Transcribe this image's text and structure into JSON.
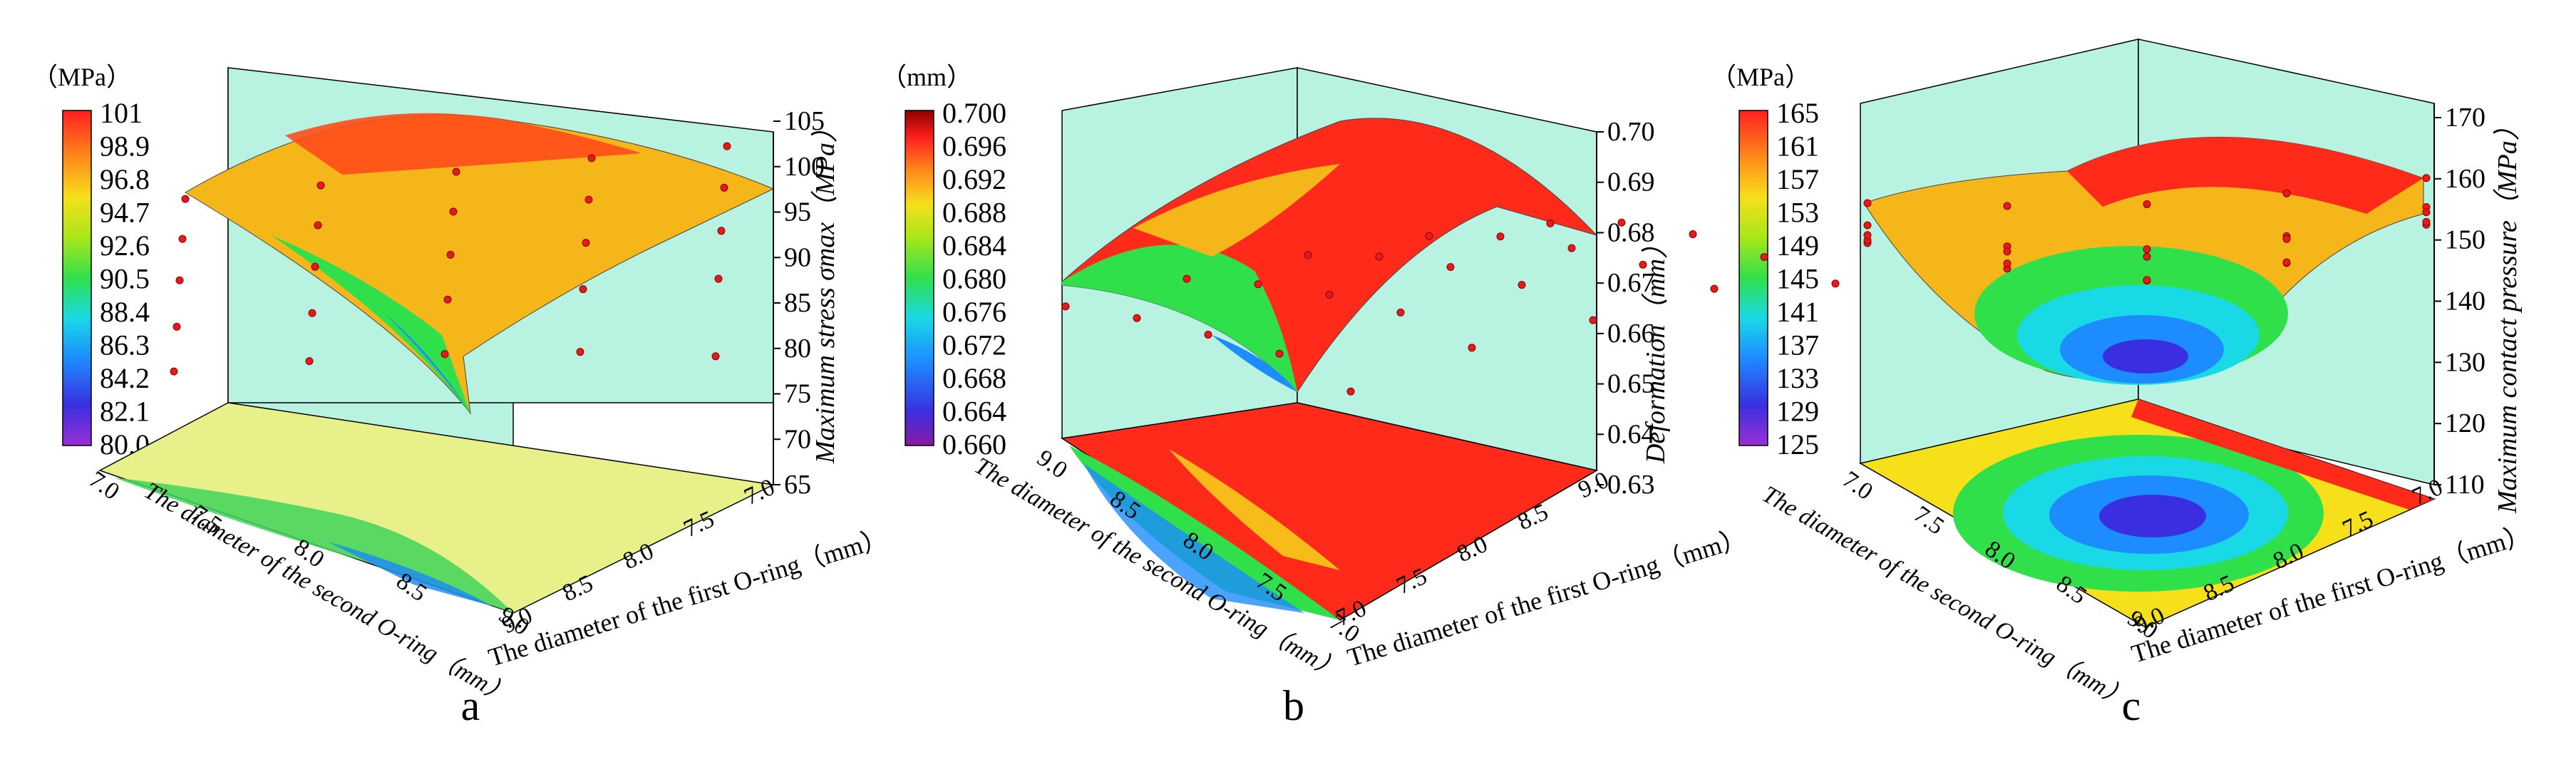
{
  "panels": [
    {
      "letter": "a",
      "colorbar_title": "（MPa）",
      "colorbar_ticks": [
        "101",
        "98.9",
        "96.8",
        "94.7",
        "92.6",
        "90.5",
        "88.4",
        "86.3",
        "84.2",
        "82.1",
        "80.0"
      ],
      "z_axis_label": "Maximum stress σmax（MPa）",
      "z_ticks": [
        "105",
        "100",
        "95",
        "90",
        "85",
        "80",
        "75",
        "70",
        "65"
      ],
      "left_axis_label": "The diameter of the second O-ring（mm）",
      "left_ticks": [
        "7.0",
        "7.5",
        "8.0",
        "8.5",
        "9.0"
      ],
      "right_axis_label": "The diameter of the first O-ring（mm）",
      "right_ticks": [
        "9.0",
        "8.5",
        "8.0",
        "7.5",
        "7.0"
      ]
    },
    {
      "letter": "b",
      "colorbar_title": "（mm）",
      "colorbar_ticks": [
        "0.700",
        "0.696",
        "0.692",
        "0.688",
        "0.684",
        "0.680",
        "0.676",
        "0.672",
        "0.668",
        "0.664",
        "0.660"
      ],
      "z_axis_label": "Deformation（mm）",
      "z_ticks": [
        "0.70",
        "0.69",
        "0.68",
        "0.67",
        "0.66",
        "0.65",
        "0.64",
        "0.63"
      ],
      "left_axis_label": "The diameter of the second O-ring（mm）",
      "left_ticks": [
        "9.0",
        "8.5",
        "8.0",
        "7.5",
        "7.0"
      ],
      "right_axis_label": "The diameter of the first O-ring（mm）",
      "right_ticks": [
        "7.0",
        "7.5",
        "8.0",
        "8.5",
        "9.0"
      ]
    },
    {
      "letter": "c",
      "colorbar_title": "（MPa）",
      "colorbar_ticks": [
        "165",
        "161",
        "157",
        "153",
        "149",
        "145",
        "141",
        "137",
        "133",
        "129",
        "125"
      ],
      "z_axis_label": "Maximum contact pressure（MPa）",
      "z_ticks": [
        "170",
        "160",
        "150",
        "140",
        "130",
        "120",
        "110"
      ],
      "left_axis_label": "The diameter of the second O-ring（mm）",
      "left_ticks": [
        "7.0",
        "7.5",
        "8.0",
        "8.5",
        "9.0"
      ],
      "right_axis_label": "The diameter of the first O-ring（mm）",
      "right_ticks": [
        "9.0",
        "8.5",
        "8.0",
        "7.5",
        "7.0"
      ]
    }
  ],
  "chart_data": [
    {
      "type": "surface",
      "title": "",
      "panel_label": "a",
      "xlabel": "The diameter of the first O-ring（mm）",
      "ylabel": "The diameter of the second O-ring（mm）",
      "zlabel": "Maximum stress σmax（MPa）",
      "x": [
        7.0,
        7.5,
        8.0,
        8.5,
        9.0
      ],
      "y": [
        7.0,
        7.5,
        8.0,
        8.5,
        9.0
      ],
      "z": [
        [
          96,
          97,
          98,
          99,
          99
        ],
        [
          98,
          99,
          100,
          100,
          100
        ],
        [
          99,
          100,
          100,
          100,
          100
        ],
        [
          97,
          98,
          99,
          98,
          97
        ],
        [
          96,
          95,
          92,
          86,
          76
        ]
      ],
      "zlim": [
        65,
        105
      ],
      "colorbar_range": [
        80.0,
        101
      ],
      "colorbar_unit": "（MPa）"
    },
    {
      "type": "surface",
      "title": "",
      "panel_label": "b",
      "xlabel": "The diameter of the first O-ring（mm）",
      "ylabel": "The diameter of the second O-ring（mm）",
      "zlabel": "Deformation（mm）",
      "x": [
        7.0,
        7.5,
        8.0,
        8.5,
        9.0
      ],
      "y": [
        9.0,
        8.5,
        8.0,
        7.5,
        7.0
      ],
      "z": [
        [
          0.68,
          0.685,
          0.687,
          0.685,
          0.678
        ],
        [
          0.682,
          0.692,
          0.697,
          0.696,
          0.69
        ],
        [
          0.68,
          0.695,
          0.7,
          0.698,
          0.692
        ],
        [
          0.676,
          0.692,
          0.697,
          0.696,
          0.685
        ],
        [
          0.657,
          0.675,
          0.68,
          0.688,
          0.675
        ]
      ],
      "zlim": [
        0.63,
        0.7
      ],
      "colorbar_range": [
        0.66,
        0.7
      ],
      "colorbar_unit": "（mm）"
    },
    {
      "type": "surface",
      "title": "",
      "panel_label": "c",
      "xlabel": "The diameter of the first O-ring（mm）",
      "ylabel": "The diameter of the second O-ring（mm）",
      "zlabel": "Maximum contact pressure（MPa）",
      "x": [
        7.0,
        7.5,
        8.0,
        8.5,
        9.0
      ],
      "y": [
        7.0,
        7.5,
        8.0,
        8.5,
        9.0
      ],
      "z": [
        [
          165,
          160,
          157,
          158,
          161
        ],
        [
          158,
          145,
          140,
          142,
          151
        ],
        [
          153,
          138,
          129,
          133,
          146
        ],
        [
          157,
          143,
          132,
          136,
          150
        ],
        [
          162,
          151,
          145,
          149,
          157
        ]
      ],
      "zlim": [
        110,
        170
      ],
      "colorbar_range": [
        125,
        165
      ],
      "colorbar_unit": "（MPa）"
    }
  ]
}
